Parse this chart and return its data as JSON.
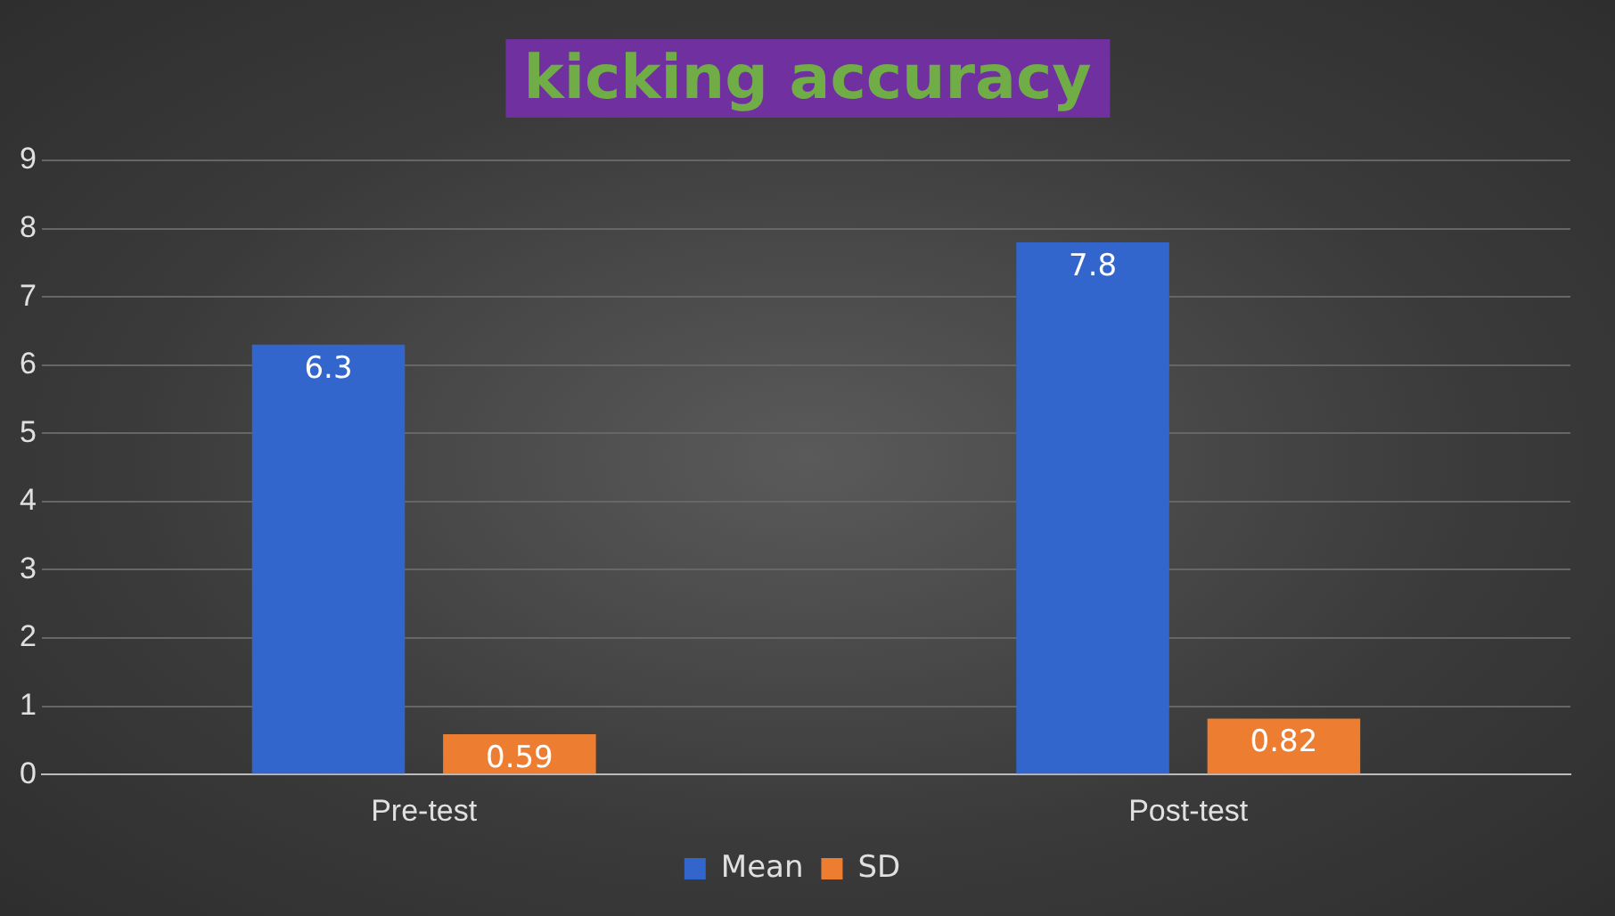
{
  "chart_data": {
    "type": "bar",
    "title": "kicking accuracy",
    "categories": [
      "Pre-test",
      "Post-test"
    ],
    "series": [
      {
        "name": "Mean",
        "color": "#3366cc",
        "values": [
          6.3,
          7.8
        ]
      },
      {
        "name": "SD",
        "color": "#ed7d31",
        "values": [
          0.59,
          0.82
        ]
      }
    ],
    "ylim": [
      0,
      9
    ],
    "yticks": [
      0,
      1,
      2,
      3,
      4,
      5,
      6,
      7,
      8,
      9
    ],
    "grid": "y",
    "legend": "bottom",
    "data_labels": true
  }
}
